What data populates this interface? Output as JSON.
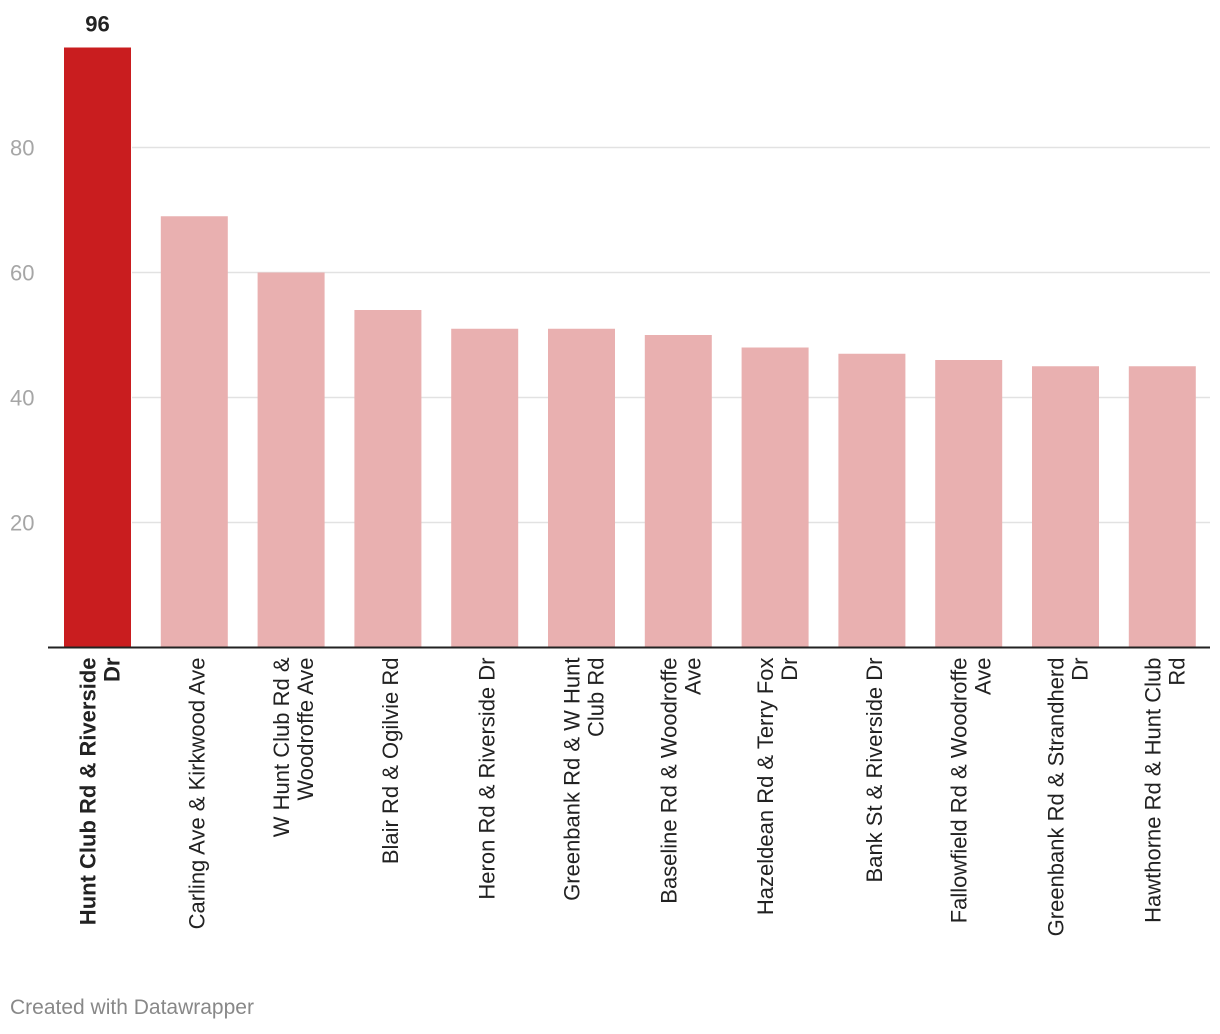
{
  "chart_data": {
    "type": "bar",
    "categories": [
      [
        "Hunt Club Rd & Riverside",
        "Dr"
      ],
      [
        "Carling Ave & Kirkwood Ave"
      ],
      [
        "W Hunt Club Rd &",
        "Woodroffe Ave"
      ],
      [
        "Blair Rd & Ogilvie Rd"
      ],
      [
        "Heron Rd & Riverside Dr"
      ],
      [
        "Greenbank Rd & W Hunt",
        "Club Rd"
      ],
      [
        "Baseline Rd & Woodroffe",
        "Ave"
      ],
      [
        "Hazeldean Rd & Terry Fox",
        "Dr"
      ],
      [
        "Bank St & Riverside Dr"
      ],
      [
        "Fallowfield Rd & Woodroffe",
        "Ave"
      ],
      [
        "Greenbank Rd & Strandherd",
        "Dr"
      ],
      [
        "Hawthorne Rd & Hunt Club",
        "Rd"
      ]
    ],
    "values": [
      96,
      69,
      60,
      54,
      51,
      51,
      50,
      48,
      47,
      46,
      45,
      45
    ],
    "highlight_index": 0,
    "highlight_label": "96",
    "yticks": [
      20,
      40,
      60,
      80
    ],
    "ylim": [
      0,
      96
    ],
    "grid": true,
    "colors": {
      "highlight": "#c91d1f",
      "bar": "#e9b0b0",
      "grid": "#e2e2e2",
      "axis": "#222222",
      "tick_text": "#a6a6a6",
      "label_text": "#222222"
    }
  },
  "footer": {
    "credit": "Created with Datawrapper"
  }
}
